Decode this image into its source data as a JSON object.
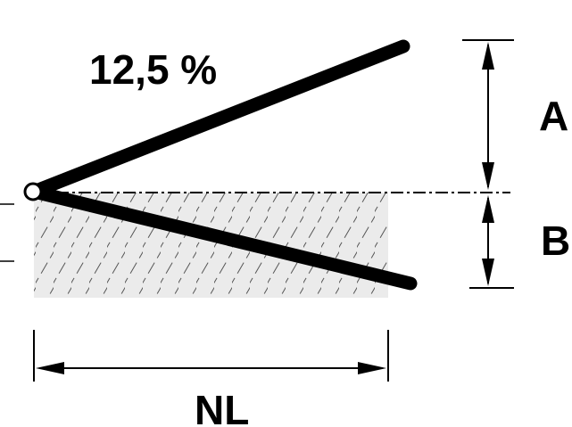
{
  "labels": {
    "slope": "12,5 %",
    "dimension_a": "A",
    "dimension_b": "B",
    "length": "NL"
  },
  "colors": {
    "stroke": "#000000",
    "hatch_fill": "#ebebeb",
    "hatch_line": "#555555",
    "background": "#ffffff"
  }
}
